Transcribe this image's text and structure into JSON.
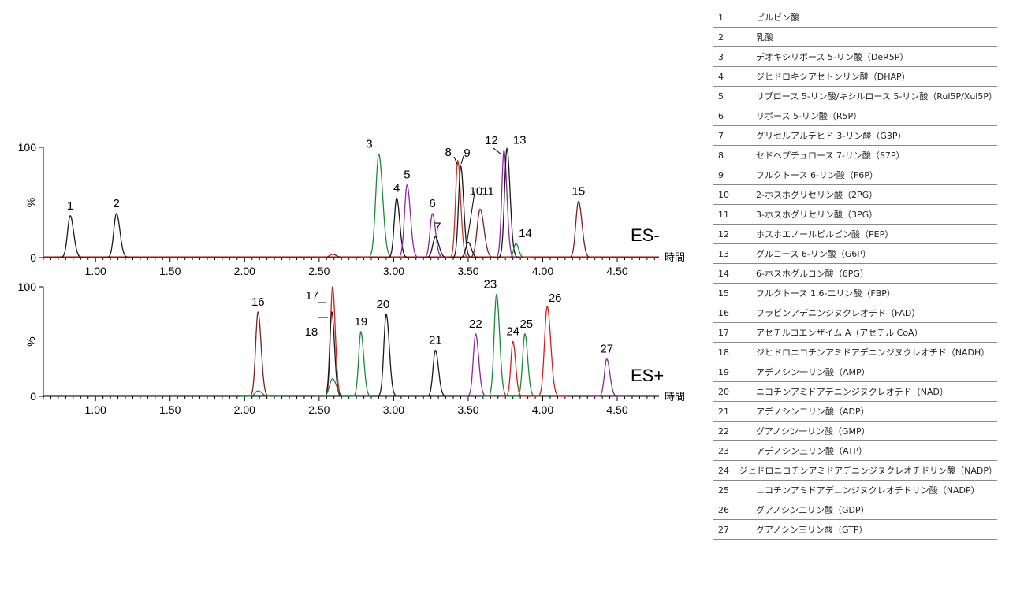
{
  "chart_data": [
    {
      "type": "line",
      "mode_label": "ES-",
      "x_unit_label": "時間",
      "ylabel": "%",
      "xlim": [
        0.65,
        4.78
      ],
      "ylim": [
        0,
        100
      ],
      "x_ticks": [
        1.0,
        1.5,
        2.0,
        2.5,
        3.0,
        3.5,
        4.0,
        4.5
      ],
      "x_tick_labels": [
        "1.00",
        "1.50",
        "2.00",
        "2.50",
        "3.00",
        "3.50",
        "4.00",
        "4.50"
      ],
      "y_ticks": [
        0,
        100
      ],
      "y_tick_labels": [
        "0",
        "100"
      ],
      "peaks": [
        {
          "label": "1",
          "x": 0.83,
          "y": 38,
          "color": "#1a1a1a",
          "width": 0.018
        },
        {
          "label": "2",
          "x": 1.14,
          "y": 40,
          "color": "#1a1a1a",
          "width": 0.018
        },
        {
          "label": "",
          "x": 2.59,
          "y": 3,
          "color": "#7a2020",
          "width": 0.02
        },
        {
          "label": "3",
          "x": 2.9,
          "y": 94,
          "color": "#1a8a3a",
          "width": 0.02
        },
        {
          "label": "4",
          "x": 3.02,
          "y": 54,
          "color": "#1a1a1a",
          "width": 0.016
        },
        {
          "label": "5",
          "x": 3.09,
          "y": 66,
          "color": "#8a2a9a",
          "width": 0.017
        },
        {
          "label": "6",
          "x": 3.26,
          "y": 40,
          "color": "#8a2a9a",
          "width": 0.016
        },
        {
          "label": "7",
          "x": 3.28,
          "y": 19,
          "color": "#1a1a1a",
          "width": 0.018
        },
        {
          "label": "8",
          "x": 3.43,
          "y": 88,
          "color": "#c0392b",
          "width": 0.015
        },
        {
          "label": "9",
          "x": 3.45,
          "y": 83,
          "color": "#1a1a1a",
          "width": 0.015
        },
        {
          "label": "10",
          "x": 3.5,
          "y": 14,
          "color": "#1a1a1a",
          "width": 0.016
        },
        {
          "label": "11",
          "x": 3.58,
          "y": 44,
          "color": "#7a2020",
          "width": 0.02
        },
        {
          "label": "12",
          "x": 3.74,
          "y": 97,
          "color": "#8a2a9a",
          "width": 0.015
        },
        {
          "label": "13",
          "x": 3.76,
          "y": 99,
          "color": "#1a1a1a",
          "width": 0.016
        },
        {
          "label": "14",
          "x": 3.82,
          "y": 13,
          "color": "#1a8a3a",
          "width": 0.014
        },
        {
          "label": "15",
          "x": 4.24,
          "y": 51,
          "color": "#7a2020",
          "width": 0.018
        }
      ],
      "baseline_color": "#c0392b"
    },
    {
      "type": "line",
      "mode_label": "ES+",
      "x_unit_label": "時間",
      "ylabel": "%",
      "xlim": [
        0.65,
        4.78
      ],
      "ylim": [
        0,
        100
      ],
      "x_ticks": [
        1.0,
        1.5,
        2.0,
        2.5,
        3.0,
        3.5,
        4.0,
        4.5
      ],
      "x_tick_labels": [
        "1.00",
        "1.50",
        "2.00",
        "2.50",
        "3.00",
        "3.50",
        "4.00",
        "4.50"
      ],
      "y_ticks": [
        0,
        100
      ],
      "y_tick_labels": [
        "0",
        "100"
      ],
      "peaks": [
        {
          "label": "16",
          "x": 2.09,
          "y": 77,
          "color": "#7a2020",
          "width": 0.016
        },
        {
          "label": "",
          "x": 2.09,
          "y": 5,
          "color": "#1a8a3a",
          "width": 0.02
        },
        {
          "label": "17",
          "x": 2.59,
          "y": 100,
          "color": "#d02020",
          "width": 0.014
        },
        {
          "label": "18",
          "x": 2.585,
          "y": 77,
          "color": "#1a1a1a",
          "width": 0.014
        },
        {
          "label": "",
          "x": 2.59,
          "y": 16,
          "color": "#1a8a3a",
          "width": 0.02
        },
        {
          "label": "19",
          "x": 2.78,
          "y": 59,
          "color": "#1a8a3a",
          "width": 0.015
        },
        {
          "label": "20",
          "x": 2.95,
          "y": 75,
          "color": "#1a1a1a",
          "width": 0.016
        },
        {
          "label": "21",
          "x": 3.28,
          "y": 42,
          "color": "#1a1a1a",
          "width": 0.016
        },
        {
          "label": "22",
          "x": 3.55,
          "y": 57,
          "color": "#8a2a9a",
          "width": 0.016
        },
        {
          "label": "23",
          "x": 3.69,
          "y": 93,
          "color": "#1a8a3a",
          "width": 0.016
        },
        {
          "label": "24",
          "x": 3.8,
          "y": 50,
          "color": "#d02020",
          "width": 0.014
        },
        {
          "label": "25",
          "x": 3.88,
          "y": 57,
          "color": "#1a8a3a",
          "width": 0.015
        },
        {
          "label": "26",
          "x": 4.03,
          "y": 82,
          "color": "#d02020",
          "width": 0.018
        },
        {
          "label": "27",
          "x": 4.43,
          "y": 34,
          "color": "#8a2a9a",
          "width": 0.016
        }
      ],
      "baseline_color": "#1a1a1a"
    }
  ],
  "legend": [
    {
      "num": "1",
      "name": "ピルビン酸"
    },
    {
      "num": "2",
      "name": "乳酸"
    },
    {
      "num": "3",
      "name": "デオキシリボース 5-リン酸（DeR5P）"
    },
    {
      "num": "4",
      "name": "ジヒドロキシアセトンリン酸（DHAP）"
    },
    {
      "num": "5",
      "name": "リブロース 5-リン酸/キシルロース 5-リン酸（Rul5P/Xul5P）"
    },
    {
      "num": "6",
      "name": "リボース 5-リン酸（R5P）"
    },
    {
      "num": "7",
      "name": "グリセルアルデヒド 3-リン酸（G3P）"
    },
    {
      "num": "8",
      "name": "セドヘプチュロース 7-リン酸（S7P）"
    },
    {
      "num": "9",
      "name": "フルクトース 6-リン酸（F6P）"
    },
    {
      "num": "10",
      "name": "2-ホスホグリセリン酸（2PG）"
    },
    {
      "num": "11",
      "name": "3-ホスホグリセリン酸（3PG）"
    },
    {
      "num": "12",
      "name": "ホスホエノールピルビン酸（PEP）"
    },
    {
      "num": "13",
      "name": "グルコース 6-リン酸（G6P）"
    },
    {
      "num": "14",
      "name": "6-ホスホグルコン酸（6PG）"
    },
    {
      "num": "15",
      "name": "フルクトース 1,6-二リン酸（FBP）"
    },
    {
      "num": "16",
      "name": "フラビンアデニンジヌクレオチド（FAD）"
    },
    {
      "num": "17",
      "name": "アセチルコエンザイム A（アセチル CoA）"
    },
    {
      "num": "18",
      "name": "ジヒドロニコチンアミドアデニンジヌクレオチド（NADH）"
    },
    {
      "num": "19",
      "name": "アデノシン一リン酸（AMP）"
    },
    {
      "num": "20",
      "name": "ニコチンアミドアデニンジヌクレオチド（NAD）"
    },
    {
      "num": "21",
      "name": "アデノシン二リン酸（ADP）"
    },
    {
      "num": "22",
      "name": "グアノシン一リン酸（GMP）"
    },
    {
      "num": "23",
      "name": "アデノシン三リン酸（ATP）"
    },
    {
      "num": "24",
      "name": "ジヒドロニコチンアミドアデニンジヌクレオチドリン酸（NADP）"
    },
    {
      "num": "25",
      "name": "ニコチンアミドアデニンジヌクレオチドリン酸（NADP）"
    },
    {
      "num": "26",
      "name": "グアノシン二リン酸（GDP）"
    },
    {
      "num": "27",
      "name": "グアノシン三リン酸（GTP）"
    }
  ]
}
